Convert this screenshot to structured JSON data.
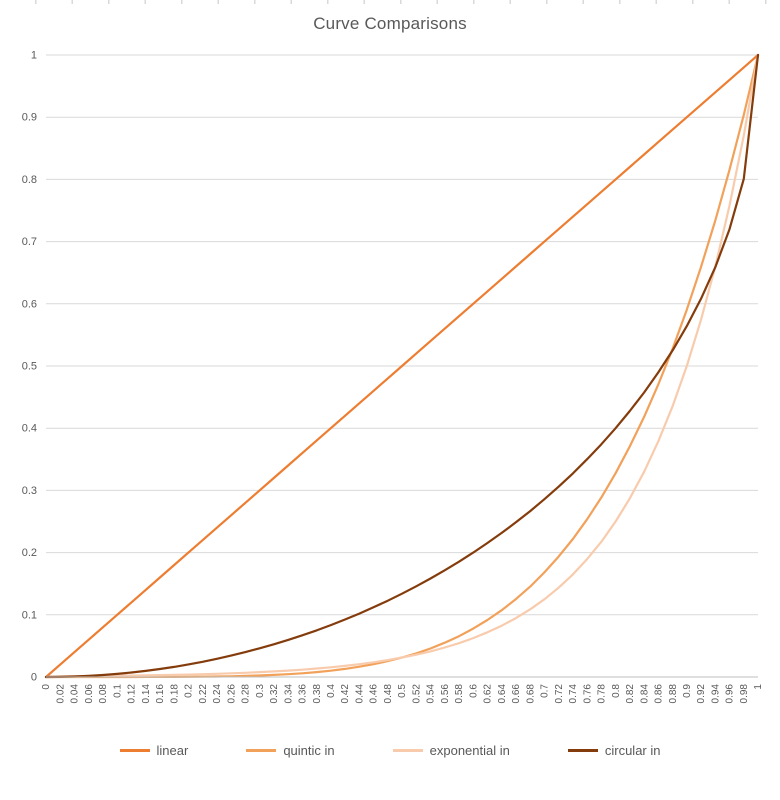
{
  "chart_data": {
    "type": "line",
    "title": "Curve Comparisons",
    "xlabel": "",
    "ylabel": "",
    "xlim": [
      0,
      1
    ],
    "ylim": [
      0,
      1
    ],
    "grid": "horizontal",
    "legend_position": "bottom",
    "axis_color": "#BFBFBF",
    "gridline_color": "#D9D9D9",
    "label_color": "#595959",
    "y_ticks": [
      0,
      0.1,
      0.2,
      0.3,
      0.4,
      0.5,
      0.6,
      0.7,
      0.8,
      0.9,
      1
    ],
    "y_tick_labels": [
      "0",
      "0.1",
      "0.2",
      "0.3",
      "0.4",
      "0.5",
      "0.6",
      "0.7",
      "0.8",
      "0.9",
      "1"
    ],
    "x": [
      0,
      0.02,
      0.04,
      0.06,
      0.08,
      0.1,
      0.12,
      0.14,
      0.16,
      0.18,
      0.2,
      0.22,
      0.24,
      0.26,
      0.28,
      0.3,
      0.32,
      0.34,
      0.36,
      0.38,
      0.4,
      0.42,
      0.44,
      0.46,
      0.48,
      0.5,
      0.52,
      0.54,
      0.56,
      0.58,
      0.6,
      0.62,
      0.64,
      0.66,
      0.68,
      0.7,
      0.72,
      0.74,
      0.76,
      0.78,
      0.8,
      0.82,
      0.84,
      0.86,
      0.88,
      0.9,
      0.92,
      0.94,
      0.96,
      0.98,
      1
    ],
    "x_tick_labels": [
      "0",
      "0.02",
      "0.04",
      "0.06",
      "0.08",
      "0.1",
      "0.12",
      "0.14",
      "0.16",
      "0.18",
      "0.2",
      "0.22",
      "0.24",
      "0.26",
      "0.28",
      "0.3",
      "0.32",
      "0.34",
      "0.36",
      "0.38",
      "0.4",
      "0.42",
      "0.44",
      "0.46",
      "0.48",
      "0.5",
      "0.52",
      "0.54",
      "0.56",
      "0.58",
      "0.6",
      "0.62",
      "0.64",
      "0.66",
      "0.68",
      "0.7",
      "0.72",
      "0.74",
      "0.76",
      "0.78",
      "0.8",
      "0.82",
      "0.84",
      "0.86",
      "0.88",
      "0.9",
      "0.92",
      "0.94",
      "0.96",
      "0.98",
      "1"
    ],
    "series": [
      {
        "name": "linear",
        "color": "#ED7D31",
        "values": [
          0,
          0.02,
          0.04,
          0.06,
          0.08,
          0.1,
          0.12,
          0.14,
          0.16,
          0.18,
          0.2,
          0.22,
          0.24,
          0.26,
          0.28,
          0.3,
          0.32,
          0.34,
          0.36,
          0.38,
          0.4,
          0.42,
          0.44,
          0.46,
          0.48,
          0.5,
          0.52,
          0.54,
          0.56,
          0.58,
          0.6,
          0.62,
          0.64,
          0.66,
          0.68,
          0.7,
          0.72,
          0.74,
          0.76,
          0.78,
          0.8,
          0.82,
          0.84,
          0.86,
          0.88,
          0.9,
          0.92,
          0.94,
          0.96,
          0.98,
          1
        ]
      },
      {
        "name": "quintic in",
        "color": "#F2A15A",
        "values": [
          0,
          0,
          0,
          0,
          0,
          0,
          0,
          0.0001,
          0.0001,
          0.0002,
          0.0003,
          0.0005,
          0.0008,
          0.0012,
          0.0017,
          0.0024,
          0.0034,
          0.0045,
          0.006,
          0.0079,
          0.0102,
          0.0131,
          0.0165,
          0.0206,
          0.0255,
          0.0313,
          0.038,
          0.0459,
          0.0551,
          0.0656,
          0.0778,
          0.0916,
          0.1074,
          0.1252,
          0.1454,
          0.1681,
          0.1935,
          0.2219,
          0.2536,
          0.2887,
          0.3277,
          0.3707,
          0.4182,
          0.4704,
          0.5277,
          0.5905,
          0.6591,
          0.7339,
          0.8154,
          0.9039,
          1
        ]
      },
      {
        "name": "exponential in",
        "color": "#F8CBAD",
        "values": [
          0,
          0.0011,
          0.0013,
          0.0015,
          0.0017,
          0.002,
          0.0022,
          0.0026,
          0.003,
          0.0034,
          0.0039,
          0.0045,
          0.0052,
          0.0059,
          0.0068,
          0.0078,
          0.009,
          0.0103,
          0.0118,
          0.0136,
          0.0156,
          0.0179,
          0.0206,
          0.0237,
          0.0272,
          0.0313,
          0.0359,
          0.0412,
          0.0474,
          0.0544,
          0.0625,
          0.0718,
          0.0825,
          0.0947,
          0.1088,
          0.125,
          0.1436,
          0.1649,
          0.1895,
          0.2176,
          0.25,
          0.2872,
          0.3299,
          0.3789,
          0.4353,
          0.5,
          0.5743,
          0.6598,
          0.7579,
          0.8706,
          1
        ]
      },
      {
        "name": "circular in",
        "color": "#843C0C",
        "values": [
          0,
          0.0002,
          0.0008,
          0.0018,
          0.0032,
          0.005,
          0.0072,
          0.0098,
          0.0129,
          0.0163,
          0.0202,
          0.0245,
          0.0292,
          0.0344,
          0.04,
          0.0461,
          0.0526,
          0.0596,
          0.067,
          0.075,
          0.0835,
          0.0925,
          0.102,
          0.1121,
          0.1227,
          0.134,
          0.1458,
          0.1583,
          0.1715,
          0.1854,
          0.2,
          0.2154,
          0.2316,
          0.2487,
          0.2668,
          0.2859,
          0.306,
          0.3274,
          0.3501,
          0.3742,
          0.4,
          0.4276,
          0.4574,
          0.4897,
          0.525,
          0.5641,
          0.6081,
          0.6588,
          0.72,
          0.801,
          1
        ]
      }
    ]
  }
}
